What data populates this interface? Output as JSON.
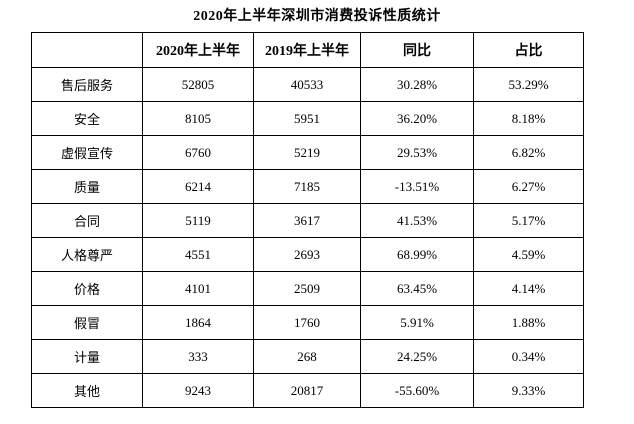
{
  "title": "2020年上半年深圳市消费投诉性质统计",
  "table": {
    "headers": [
      "",
      "2020年上半年",
      "2019年上半年",
      "同比",
      "占比"
    ],
    "rows": [
      [
        "售后服务",
        "52805",
        "40533",
        "30.28%",
        "53.29%"
      ],
      [
        "安全",
        "8105",
        "5951",
        "36.20%",
        "8.18%"
      ],
      [
        "虚假宣传",
        "6760",
        "5219",
        "29.53%",
        "6.82%"
      ],
      [
        "质量",
        "6214",
        "7185",
        "-13.51%",
        "6.27%"
      ],
      [
        "合同",
        "5119",
        "3617",
        "41.53%",
        "5.17%"
      ],
      [
        "人格尊严",
        "4551",
        "2693",
        "68.99%",
        "4.59%"
      ],
      [
        "价格",
        "4101",
        "2509",
        "63.45%",
        "4.14%"
      ],
      [
        "假冒",
        "1864",
        "1760",
        "5.91%",
        "1.88%"
      ],
      [
        "计量",
        "333",
        "268",
        "24.25%",
        "0.34%"
      ],
      [
        "其他",
        "9243",
        "20817",
        "-55.60%",
        "9.33%"
      ]
    ]
  },
  "colors": {
    "text": "#000000",
    "border": "#000000",
    "background": "#ffffff"
  }
}
